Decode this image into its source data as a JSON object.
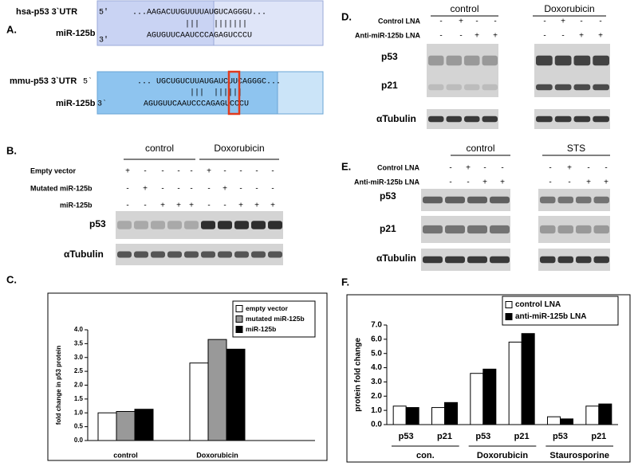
{
  "panel_a": {
    "label": "A.",
    "hsa": {
      "name": "hsa-p53 3`UTR",
      "end5": "5'",
      "utr": "...AAGACUUGUUUUAUG",
      "site": "CUCAGGGU...",
      "pairs": "|||   |||||||",
      "mir_name": "miR-125b",
      "end3": "3'",
      "mir": "AGUGUUCAAUCCCAGAGUCCCU"
    },
    "mmu": {
      "name": "mmu-p53 3`UTR",
      "end5": "5`",
      "utr": "... UGCUGUCUUAUGAUCUUCAGGGC...",
      "pairs": "|||  ||||||",
      "mir_name": "miR-125b",
      "end3": "3`",
      "mir": "AGUGUUCAAUCCCAGAGUCCCU"
    }
  },
  "panel_b": {
    "label": "B.",
    "groups": [
      "control",
      "Doxorubicin"
    ],
    "rows": [
      {
        "label": "Empty vector",
        "signs": [
          "+",
          "-",
          "-",
          "-",
          "-",
          "+",
          "-",
          "-",
          "-",
          "-"
        ]
      },
      {
        "label": "Mutated miR-125b",
        "signs": [
          "-",
          "+",
          "-",
          "-",
          "-",
          "-",
          "+",
          "-",
          "-",
          "-"
        ]
      },
      {
        "label": "miR-125b",
        "signs": [
          "-",
          "-",
          "+",
          "+",
          "+",
          "-",
          "-",
          "+",
          "+",
          "+"
        ]
      }
    ],
    "blots": [
      "p53",
      "αTubulin"
    ]
  },
  "panel_d": {
    "label": "D.",
    "groups": [
      "control",
      "Doxorubicin"
    ],
    "rows": [
      {
        "label": "Control LNA",
        "signs": [
          "-",
          "+",
          "-",
          "-",
          "-",
          "+",
          "-",
          "-"
        ]
      },
      {
        "label": "Anti-miR-125b LNA",
        "signs": [
          "-",
          "-",
          "+",
          "+",
          "-",
          "-",
          "+",
          "+"
        ]
      }
    ],
    "blots": [
      "p53",
      "p21",
      "αTubulin"
    ]
  },
  "panel_e": {
    "label": "E.",
    "groups": [
      "control",
      "STS"
    ],
    "rows": [
      {
        "label": "Control LNA",
        "signs": [
          "-",
          "+",
          "-",
          "-",
          "-",
          "+",
          "-",
          "-"
        ]
      },
      {
        "label": "Anti-miR-125b LNA",
        "signs": [
          "-",
          "-",
          "+",
          "+",
          "-",
          "-",
          "+",
          "+"
        ]
      }
    ],
    "blots": [
      "p53",
      "p21",
      "αTubulin"
    ]
  },
  "chart_data": [
    {
      "type": "bar",
      "panel_label": "C.",
      "ylabel": "fold change in p53 protein",
      "categories": [
        "control",
        "Doxorubicin"
      ],
      "series": [
        {
          "name": "empty vector",
          "color": "#ffffff",
          "values": [
            1.0,
            2.8
          ]
        },
        {
          "name": "mutated miR-125b",
          "color": "#999999",
          "values": [
            1.05,
            3.65
          ]
        },
        {
          "name": "miR-125b",
          "color": "#000000",
          "values": [
            1.13,
            3.3
          ]
        }
      ],
      "ylim": [
        0,
        4
      ],
      "yticks": [
        {
          "value": 0,
          "label": "0.0"
        },
        {
          "value": 0.5,
          "label": "0.5"
        },
        {
          "value": 1,
          "label": "1.0"
        },
        {
          "value": 1.5,
          "label": "1.5"
        },
        {
          "value": 2,
          "label": "2.0"
        },
        {
          "value": 2.5,
          "label": "2.5"
        },
        {
          "value": 3,
          "label": "3.0"
        },
        {
          "value": 3.5,
          "label": "3.5"
        },
        {
          "value": 4,
          "label": "4.0"
        }
      ],
      "legend": "upper right"
    },
    {
      "type": "bar",
      "panel_label": "F.",
      "ylabel": "protein fold change",
      "categories": [
        "p53",
        "p21",
        "p53",
        "p21",
        "p53",
        "p21"
      ],
      "groups": [
        "con.",
        "Doxorubicin",
        "Staurosporine"
      ],
      "series": [
        {
          "name": "control LNA",
          "color": "#ffffff",
          "values": [
            1.3,
            1.2,
            3.6,
            5.8,
            0.55,
            1.3
          ]
        },
        {
          "name": "anti-miR-125b LNA",
          "color": "#000000",
          "values": [
            1.2,
            1.55,
            3.9,
            6.4,
            0.4,
            1.45
          ]
        }
      ],
      "ylim": [
        0,
        7
      ],
      "yticks": [
        {
          "value": 0,
          "label": "0.0"
        },
        {
          "value": 1,
          "label": "1.0"
        },
        {
          "value": 2,
          "label": "2.0"
        },
        {
          "value": 3,
          "label": "3.0"
        },
        {
          "value": 4,
          "label": "4.0"
        },
        {
          "value": 5,
          "label": "5.0"
        },
        {
          "value": 6,
          "label": "6.0"
        },
        {
          "value": 7,
          "label": "7.0"
        }
      ],
      "legend": "upper right"
    }
  ]
}
